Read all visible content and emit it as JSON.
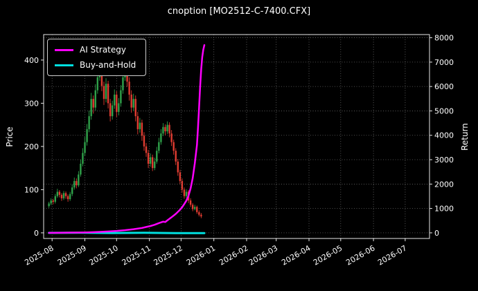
{
  "title": "cnoption [MO2512-C-7400.CFX]",
  "colors": {
    "background": "#000000",
    "text": "#ffffff",
    "grid": "#6a6a6a",
    "axis": "#e8e8e8",
    "candle_up": "#2fa24a",
    "candle_down": "#e03c31",
    "strategy": "#ff00ff",
    "buyhold": "#00e0e0"
  },
  "legend": {
    "items": [
      {
        "label": "AI Strategy",
        "color_key": "strategy"
      },
      {
        "label": "Buy-and-Hold",
        "color_key": "buyhold"
      }
    ]
  },
  "chart_data": {
    "type": "candlestick_with_lines",
    "title": "cnoption [MO2512-C-7400.CFX]",
    "xlabel": "",
    "ylabel_left": "Price",
    "ylabel_right": "Return",
    "grid": "dotted",
    "legend_position": "upper-left",
    "x_epoch": "2025-07-29",
    "x_domain_days": [
      -5,
      360
    ],
    "y_left_ticks": [
      0,
      100,
      200,
      300,
      400
    ],
    "y_left_domain": [
      -13,
      459
    ],
    "y_right_ticks": [
      0,
      1000,
      2000,
      3000,
      4000,
      5000,
      6000,
      7000,
      8000
    ],
    "y_right_domain": [
      -230,
      8130
    ],
    "x_ticks": [
      {
        "day": 3,
        "label": "2025-08"
      },
      {
        "day": 34,
        "label": "2025-09"
      },
      {
        "day": 64,
        "label": "2025-10"
      },
      {
        "day": 95,
        "label": "2025-11"
      },
      {
        "day": 125,
        "label": "2025-12"
      },
      {
        "day": 156,
        "label": "2026-01"
      },
      {
        "day": 187,
        "label": "2026-02"
      },
      {
        "day": 215,
        "label": "2026-03"
      },
      {
        "day": 246,
        "label": "2026-04"
      },
      {
        "day": 276,
        "label": "2026-05"
      },
      {
        "day": 307,
        "label": "2026-06"
      },
      {
        "day": 337,
        "label": "2026-07"
      }
    ],
    "candles_format": [
      "day",
      "open",
      "high",
      "low",
      "close"
    ],
    "candles": [
      [
        0,
        62,
        72,
        58,
        68
      ],
      [
        2,
        68,
        80,
        64,
        75
      ],
      [
        4,
        75,
        79,
        66,
        72
      ],
      [
        6,
        72,
        90,
        68,
        85
      ],
      [
        8,
        85,
        102,
        81,
        95
      ],
      [
        10,
        95,
        99,
        82,
        88
      ],
      [
        12,
        88,
        92,
        74,
        80
      ],
      [
        14,
        80,
        97,
        76,
        92
      ],
      [
        16,
        92,
        96,
        79,
        85
      ],
      [
        18,
        85,
        89,
        72,
        78
      ],
      [
        20,
        78,
        95,
        74,
        90
      ],
      [
        22,
        90,
        112,
        85,
        105
      ],
      [
        24,
        105,
        128,
        100,
        120
      ],
      [
        26,
        120,
        126,
        103,
        110
      ],
      [
        28,
        110,
        143,
        106,
        135
      ],
      [
        30,
        135,
        170,
        130,
        160
      ],
      [
        32,
        160,
        196,
        154,
        185
      ],
      [
        34,
        185,
        222,
        178,
        210
      ],
      [
        36,
        210,
        252,
        202,
        240
      ],
      [
        38,
        240,
        283,
        233,
        270
      ],
      [
        40,
        270,
        324,
        262,
        310
      ],
      [
        42,
        310,
        318,
        276,
        290
      ],
      [
        44,
        290,
        344,
        283,
        330
      ],
      [
        46,
        330,
        374,
        322,
        360
      ],
      [
        48,
        360,
        398,
        352,
        385
      ],
      [
        50,
        385,
        392,
        328,
        340
      ],
      [
        52,
        340,
        350,
        296,
        310
      ],
      [
        54,
        310,
        358,
        302,
        345
      ],
      [
        56,
        345,
        352,
        288,
        300
      ],
      [
        58,
        300,
        310,
        258,
        270
      ],
      [
        60,
        270,
        306,
        262,
        295
      ],
      [
        62,
        295,
        332,
        287,
        320
      ],
      [
        64,
        320,
        328,
        268,
        280
      ],
      [
        66,
        280,
        312,
        272,
        300
      ],
      [
        68,
        300,
        342,
        292,
        330
      ],
      [
        70,
        330,
        372,
        322,
        360
      ],
      [
        72,
        360,
        394,
        352,
        380
      ],
      [
        74,
        380,
        388,
        338,
        350
      ],
      [
        76,
        350,
        360,
        306,
        320
      ],
      [
        78,
        320,
        330,
        278,
        290
      ],
      [
        80,
        290,
        322,
        282,
        310
      ],
      [
        82,
        310,
        318,
        258,
        270
      ],
      [
        84,
        270,
        280,
        228,
        240
      ],
      [
        86,
        240,
        266,
        232,
        255
      ],
      [
        88,
        255,
        262,
        213,
        225
      ],
      [
        90,
        225,
        233,
        190,
        200
      ],
      [
        92,
        200,
        208,
        176,
        185
      ],
      [
        94,
        185,
        192,
        150,
        160
      ],
      [
        96,
        160,
        184,
        153,
        175
      ],
      [
        98,
        175,
        181,
        143,
        150
      ],
      [
        100,
        150,
        174,
        145,
        165
      ],
      [
        102,
        165,
        199,
        160,
        190
      ],
      [
        104,
        190,
        220,
        184,
        210
      ],
      [
        106,
        210,
        240,
        204,
        230
      ],
      [
        108,
        230,
        254,
        224,
        245
      ],
      [
        110,
        245,
        251,
        226,
        235
      ],
      [
        112,
        235,
        258,
        229,
        250
      ],
      [
        114,
        250,
        256,
        221,
        230
      ],
      [
        116,
        230,
        238,
        201,
        210
      ],
      [
        118,
        210,
        216,
        181,
        190
      ],
      [
        120,
        190,
        196,
        157,
        165
      ],
      [
        122,
        165,
        171,
        132,
        140
      ],
      [
        124,
        140,
        146,
        113,
        120
      ],
      [
        126,
        120,
        126,
        93,
        100
      ],
      [
        128,
        100,
        105,
        79,
        85
      ],
      [
        130,
        85,
        101,
        81,
        95
      ],
      [
        132,
        95,
        99,
        69,
        75
      ],
      [
        134,
        75,
        80,
        60,
        65
      ],
      [
        136,
        65,
        69,
        50,
        55
      ],
      [
        138,
        55,
        65,
        52,
        60
      ],
      [
        140,
        60,
        63,
        44,
        48
      ],
      [
        142,
        48,
        52,
        38,
        42
      ],
      [
        144,
        42,
        46,
        34,
        38
      ]
    ],
    "series": [
      {
        "name": "Buy-and-Hold",
        "axis": "right",
        "color_key": "buyhold",
        "width": 3,
        "data_name": "buy-and-hold-line",
        "points": [
          [
            0,
            0
          ],
          [
            30,
            8
          ],
          [
            60,
            -5
          ],
          [
            90,
            5
          ],
          [
            120,
            -8
          ],
          [
            147,
            -12
          ]
        ]
      },
      {
        "name": "AI Strategy",
        "axis": "right",
        "color_key": "strategy",
        "width": 2.5,
        "data_name": "ai-strategy-line",
        "points": [
          [
            0,
            0
          ],
          [
            10,
            5
          ],
          [
            20,
            10
          ],
          [
            30,
            15
          ],
          [
            40,
            25
          ],
          [
            48,
            40
          ],
          [
            56,
            55
          ],
          [
            64,
            80
          ],
          [
            72,
            110
          ],
          [
            80,
            150
          ],
          [
            88,
            200
          ],
          [
            92,
            240
          ],
          [
            96,
            280
          ],
          [
            100,
            330
          ],
          [
            104,
            400
          ],
          [
            108,
            460
          ],
          [
            110,
            445
          ],
          [
            112,
            510
          ],
          [
            116,
            640
          ],
          [
            120,
            780
          ],
          [
            124,
            950
          ],
          [
            126,
            1050
          ],
          [
            128,
            1180
          ],
          [
            130,
            1320
          ],
          [
            132,
            1520
          ],
          [
            134,
            1820
          ],
          [
            136,
            2250
          ],
          [
            138,
            2850
          ],
          [
            140,
            3600
          ],
          [
            141,
            4300
          ],
          [
            142,
            5100
          ],
          [
            143,
            6000
          ],
          [
            144,
            6700
          ],
          [
            145,
            7200
          ],
          [
            146,
            7500
          ],
          [
            147,
            7700
          ]
        ]
      }
    ]
  }
}
